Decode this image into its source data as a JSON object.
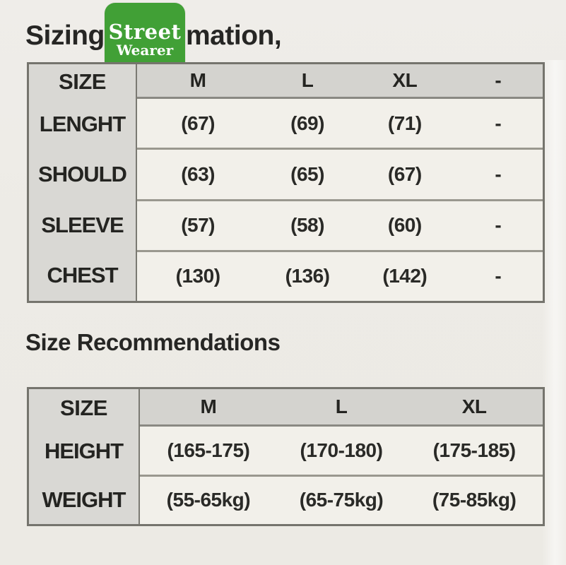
{
  "page": {
    "title_visible_part1": "Sizing",
    "title_visible_part2": "mation,"
  },
  "badge": {
    "line1": "Street",
    "line2": "Wearer",
    "background_color": "#41a036",
    "text_color": "#ffffff"
  },
  "sizing_table": {
    "corner_label": "SIZE",
    "columns": [
      "M",
      "L",
      "XL",
      "-"
    ],
    "rows": [
      {
        "label": "LENGHT",
        "values": [
          "(67)",
          "(69)",
          "(71)",
          "-"
        ]
      },
      {
        "label": "SHOULD",
        "values": [
          "(63)",
          "(65)",
          "(67)",
          "-"
        ]
      },
      {
        "label": "SLEEVE",
        "values": [
          "(57)",
          "(58)",
          "(60)",
          "-"
        ]
      },
      {
        "label": "CHEST",
        "values": [
          "(130)",
          "(136)",
          "(142)",
          "-"
        ]
      }
    ]
  },
  "recommendations": {
    "title": "Size Recommendations",
    "corner_label": "SIZE",
    "columns": [
      "M",
      "L",
      "XL"
    ],
    "rows": [
      {
        "label": "HEIGHT",
        "values": [
          "(165-175)",
          "(170-180)",
          "(175-185)"
        ]
      },
      {
        "label": "WEIGHT",
        "values": [
          "(55-65kg)",
          "(65-75kg)",
          "(75-85kg)"
        ]
      }
    ]
  },
  "colors": {
    "page_background": "#edebe6",
    "table_header_grey": "#d6d5d1",
    "table_cell_offwhite": "#f2f0ea",
    "table_border_dark": "#75746d",
    "text_dark": "#262624",
    "badge_green": "#41a036"
  }
}
